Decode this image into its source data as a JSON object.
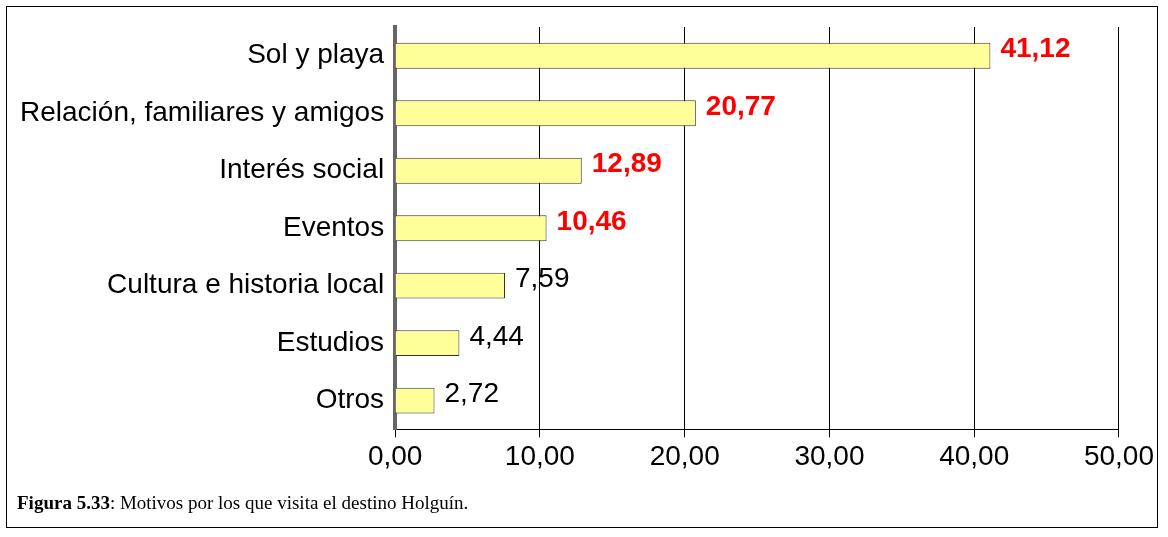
{
  "chart_data": {
    "type": "bar",
    "orientation": "horizontal",
    "categories": [
      "Sol y playa",
      "Relación, familiares y amigos",
      "Interés social",
      "Eventos",
      "Cultura e historia local",
      "Estudios",
      "Otros"
    ],
    "values": [
      41.12,
      20.77,
      12.89,
      10.46,
      7.59,
      4.44,
      2.72
    ],
    "value_labels": [
      "41,12",
      "20,77",
      "12,89",
      "10,46",
      "7,59",
      "4,44",
      "2,72"
    ],
    "color": "#ffff99",
    "xlim": [
      0,
      50
    ],
    "xticks": [
      {
        "value": 0,
        "label": "0,00"
      },
      {
        "value": 10,
        "label": "10,00"
      },
      {
        "value": 20,
        "label": "20,00"
      },
      {
        "value": 30,
        "label": "30,00"
      },
      {
        "value": 40,
        "label": "40,00"
      },
      {
        "value": 50,
        "label": "50,00"
      }
    ],
    "grid": "x",
    "legend": false,
    "annotations": [
      "Figura 5.33: Motivos por los que visita el destino Holguín."
    ]
  }
}
